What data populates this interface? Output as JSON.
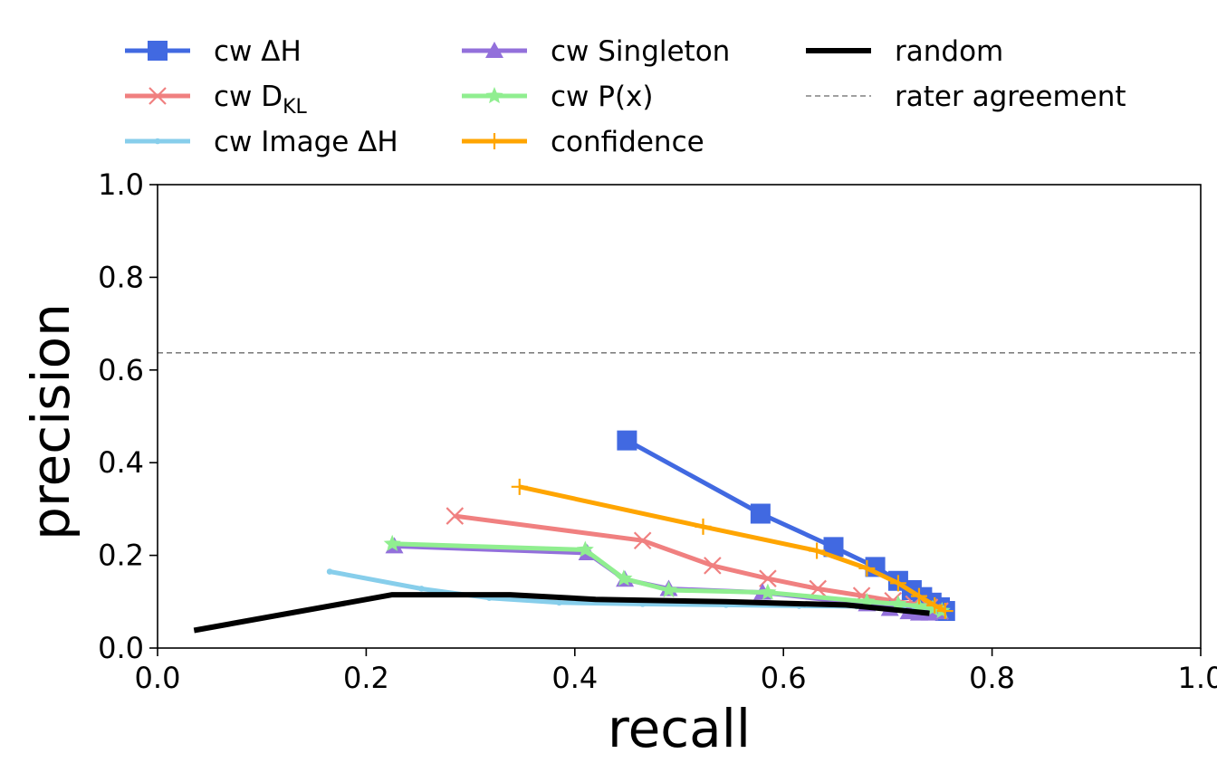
{
  "chart_data": {
    "type": "line",
    "title": "",
    "xlabel": "recall",
    "ylabel": "precision",
    "xlim": [
      0.0,
      1.0
    ],
    "ylim": [
      0.0,
      1.0
    ],
    "xticks": [
      "0.0",
      "0.2",
      "0.4",
      "0.6",
      "0.8",
      "1.0"
    ],
    "yticks": [
      "0.0",
      "0.2",
      "0.4",
      "0.6",
      "0.8",
      "1.0"
    ],
    "grid": false,
    "legend_position": "top",
    "series": [
      {
        "name": "cw ΔH",
        "label_text": "cw ΔH",
        "color": "#4169e1",
        "marker": "square",
        "x": [
          0.45,
          0.578,
          0.648,
          0.688,
          0.71,
          0.723,
          0.733,
          0.742,
          0.75,
          0.755
        ],
        "y": [
          0.448,
          0.29,
          0.218,
          0.175,
          0.145,
          0.125,
          0.11,
          0.098,
          0.088,
          0.08
        ]
      },
      {
        "name": "cw D_KL",
        "label_text": "cw D",
        "label_sub": "KL",
        "color": "#f08080",
        "marker": "x",
        "x": [
          0.285,
          0.465,
          0.532,
          0.585,
          0.633,
          0.675,
          0.705,
          0.725,
          0.74,
          0.75
        ],
        "y": [
          0.285,
          0.232,
          0.178,
          0.15,
          0.128,
          0.113,
          0.102,
          0.095,
          0.088,
          0.08
        ]
      },
      {
        "name": "cw Image ΔH",
        "label_text": "cw Image ΔH",
        "color": "#87ceeb",
        "marker": "dot",
        "x": [
          0.165,
          0.253,
          0.318,
          0.385,
          0.465,
          0.545,
          0.615,
          0.67,
          0.705,
          0.73,
          0.745
        ],
        "y": [
          0.165,
          0.128,
          0.108,
          0.098,
          0.095,
          0.093,
          0.091,
          0.09,
          0.088,
          0.084,
          0.078
        ]
      },
      {
        "name": "cw Singleton",
        "label_text": "cw Singleton",
        "color": "#9370db",
        "marker": "triangle",
        "x": [
          0.227,
          0.412,
          0.448,
          0.49,
          0.58,
          0.68,
          0.702,
          0.72,
          0.73,
          0.74,
          0.75
        ],
        "y": [
          0.22,
          0.205,
          0.148,
          0.128,
          0.12,
          0.095,
          0.085,
          0.078,
          0.075,
          0.075,
          0.078
        ]
      },
      {
        "name": "cw P(x)",
        "label_text": "cw P(x)",
        "color": "#90ee90",
        "marker": "star",
        "x": [
          0.225,
          0.41,
          0.447,
          0.49,
          0.585,
          0.68,
          0.71,
          0.73,
          0.743,
          0.752
        ],
        "y": [
          0.225,
          0.212,
          0.15,
          0.125,
          0.12,
          0.1,
          0.095,
          0.09,
          0.085,
          0.08
        ]
      },
      {
        "name": "confidence",
        "label_text": "confidence",
        "color": "#ffa500",
        "marker": "plus",
        "x": [
          0.347,
          0.523,
          0.632,
          0.68,
          0.71,
          0.73,
          0.745,
          0.755
        ],
        "y": [
          0.348,
          0.262,
          0.21,
          0.172,
          0.14,
          0.112,
          0.092,
          0.08
        ]
      },
      {
        "name": "random",
        "label_text": "random",
        "color": "#000000",
        "marker": "none",
        "x": [
          0.035,
          0.225,
          0.338,
          0.42,
          0.545,
          0.66,
          0.74
        ],
        "y": [
          0.038,
          0.115,
          0.115,
          0.105,
          0.1,
          0.093,
          0.075
        ]
      }
    ],
    "reference_lines": [
      {
        "name": "rater agreement",
        "label_text": "rater agreement",
        "y": 0.637,
        "color": "#808080",
        "style": "dashed"
      }
    ]
  }
}
